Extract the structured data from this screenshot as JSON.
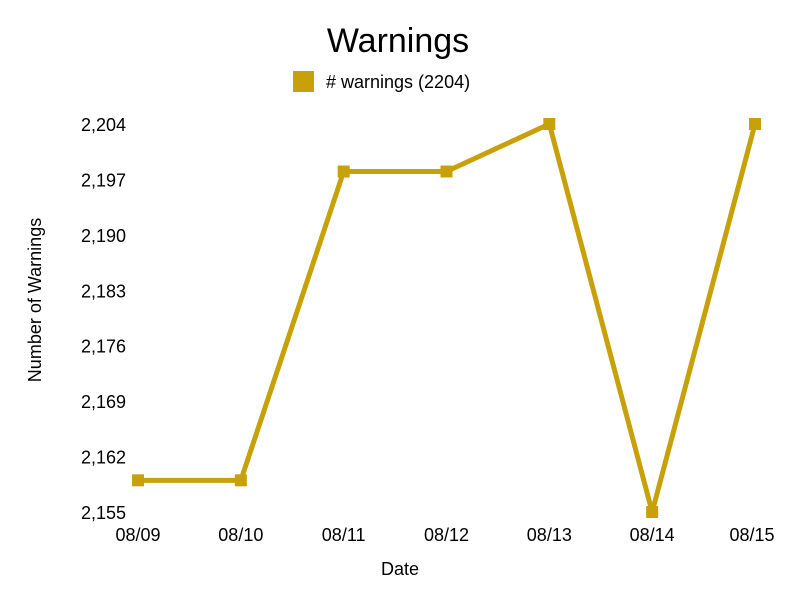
{
  "chart_data": {
    "type": "line",
    "title": "Warnings",
    "xlabel": "Date",
    "ylabel": "Number of Warnings",
    "categories": [
      "08/09",
      "08/10",
      "08/11",
      "08/12",
      "08/13",
      "08/14",
      "08/15"
    ],
    "series": [
      {
        "name": "# warnings (2204)",
        "color": "#c8a10a",
        "values": [
          2159,
          2159,
          2198,
          2198,
          2204,
          2155,
          2204
        ]
      }
    ],
    "yticks": [
      "2,155",
      "2,162",
      "2,169",
      "2,176",
      "2,183",
      "2,190",
      "2,197",
      "2,204"
    ],
    "ylim": [
      2155,
      2204
    ],
    "grid": false,
    "legend_position": "top-center",
    "marker": "square"
  }
}
